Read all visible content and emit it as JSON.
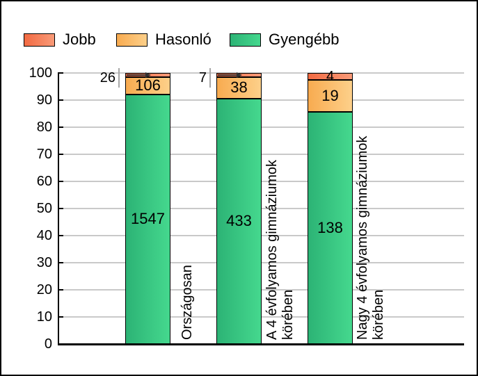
{
  "legend": {
    "items": [
      {
        "label": "Jobb"
      },
      {
        "label": "Hasonló"
      },
      {
        "label": "Gyengébb"
      }
    ]
  },
  "chart_data": {
    "type": "bar",
    "stacked": true,
    "normalized": "each bar scaled to 100%",
    "title": "",
    "xlabel": "",
    "ylabel": "",
    "categories": [
      "Országosan",
      "A 4 évfolyamos gimnáziumok körében",
      "Nagy 4 évfolyamos gimnáziumok körében"
    ],
    "category_label_lines": [
      [
        "Országosan"
      ],
      [
        "A 4 évfolyamos gimnáziumok",
        "körében"
      ],
      [
        "Nagy 4 évfolyamos gimnáziumok",
        "körében"
      ]
    ],
    "series": [
      {
        "name": "Jobb",
        "values": [
          26,
          7,
          4
        ],
        "color_from": "#f26a42",
        "color_to": "#f99a78",
        "label_outside": [
          true,
          true,
          false
        ]
      },
      {
        "name": "Hasonló",
        "values": [
          106,
          38,
          19
        ],
        "color_from": "#f8ab50",
        "color_to": "#fdd08a",
        "label_outside": [
          false,
          false,
          false
        ]
      },
      {
        "name": "Gyengébb",
        "values": [
          1547,
          433,
          138
        ],
        "color_from": "#2cb375",
        "color_to": "#45d88e",
        "label_outside": [
          false,
          false,
          false
        ]
      }
    ],
    "y_axis": {
      "min": 0,
      "max": 100,
      "ticks": [
        0,
        10,
        20,
        30,
        40,
        50,
        60,
        70,
        80,
        90,
        100
      ]
    },
    "grid": true,
    "legend_position": "top-left",
    "colors": {
      "grid": "#c9c9c9",
      "axis": "#000000",
      "callout_line": "#a8a8a8",
      "arrow": "#303030",
      "text": "#000000",
      "background": "#ffffff"
    }
  }
}
